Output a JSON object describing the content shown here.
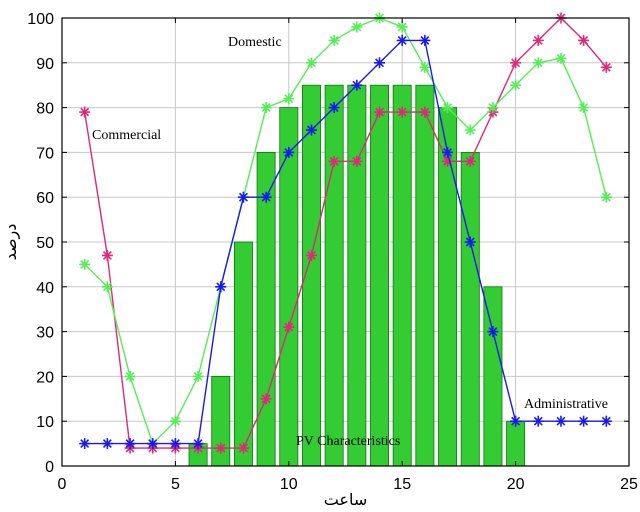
{
  "chart_data": {
    "type": "bar",
    "title": "",
    "xlabel": "ساعت",
    "ylabel": "درصد",
    "xlim": [
      0,
      25
    ],
    "ylim": [
      0,
      100
    ],
    "grid": true,
    "x_ticks": [
      0,
      5,
      10,
      15,
      20,
      25
    ],
    "y_ticks": [
      0,
      10,
      20,
      30,
      40,
      50,
      60,
      70,
      80,
      90,
      100
    ],
    "bars": {
      "name": "PV Characteristics",
      "color": "#33cc33",
      "edge_color": "#0a7a0a",
      "x": [
        6,
        7,
        8,
        9,
        10,
        11,
        12,
        13,
        14,
        15,
        16,
        17,
        18,
        19,
        20
      ],
      "values": [
        5,
        20,
        50,
        70,
        80,
        85,
        85,
        85,
        85,
        85,
        85,
        80,
        70,
        40,
        10
      ]
    },
    "series": [
      {
        "name": "Commercial",
        "color": "#e0287a",
        "marker_color": "#e0287a",
        "x": [
          1,
          2,
          3,
          4,
          5,
          6,
          7,
          8,
          9,
          10,
          11,
          12,
          13,
          14,
          15,
          16,
          17,
          18,
          19,
          20,
          21,
          22,
          23,
          24
        ],
        "values": [
          79,
          47,
          4,
          4,
          4,
          4,
          4,
          4,
          15,
          31,
          47,
          68,
          68,
          79,
          79,
          79,
          68,
          68,
          79,
          90,
          95,
          100,
          95,
          89
        ]
      },
      {
        "name": "Domestic",
        "color": "#55ee55",
        "marker_color": "#55ee55",
        "x": [
          1,
          2,
          3,
          4,
          5,
          6,
          7,
          8,
          9,
          10,
          11,
          12,
          13,
          14,
          15,
          16,
          17,
          18,
          19,
          20,
          21,
          22,
          23,
          24
        ],
        "values": [
          45,
          40,
          20,
          5,
          10,
          20,
          40,
          60,
          80,
          82,
          90,
          95,
          98,
          100,
          98,
          89,
          80,
          75,
          80,
          85,
          90,
          91,
          80,
          60
        ]
      },
      {
        "name": "Administrative",
        "color": "#1a1aee",
        "marker_color": "#1a1aee",
        "x": [
          1,
          2,
          3,
          4,
          5,
          6,
          7,
          8,
          9,
          10,
          11,
          12,
          13,
          14,
          15,
          16,
          17,
          18,
          19,
          20,
          21,
          22,
          23,
          24
        ],
        "values": [
          5,
          5,
          5,
          5,
          5,
          5,
          40,
          60,
          60,
          70,
          75,
          80,
          85,
          90,
          95,
          95,
          70,
          50,
          30,
          10,
          10,
          10,
          10,
          10
        ]
      }
    ],
    "annotations": [
      {
        "text": "Domestic",
        "anchor_series": "Domestic"
      },
      {
        "text": "Commercial",
        "anchor_series": "Commercial"
      },
      {
        "text": "Administrative",
        "anchor_series": "Administrative"
      },
      {
        "text": "PV Characteristics",
        "anchor_series": "PV Characteristics"
      }
    ]
  }
}
